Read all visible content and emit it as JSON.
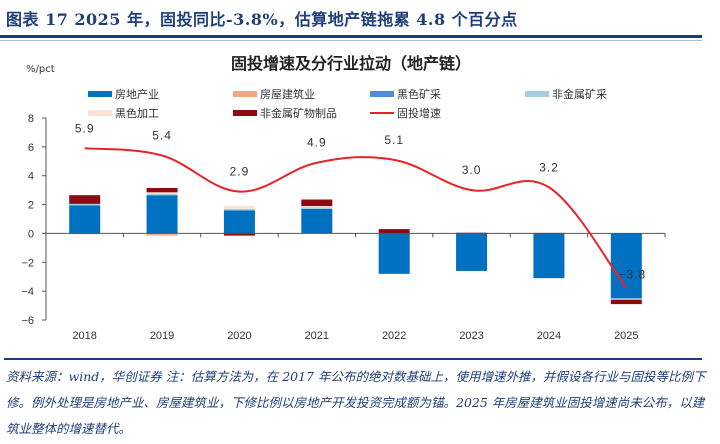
{
  "figure": {
    "title": "图表 17   2025 年，固投同比-3.8%，估算地产链拖累 4.8 个百分点",
    "source_note": "资料来源：wind，华创证券 注：估算方法为，在 2017 年公布的绝对数基础上，使用增速外推，并假设各行业与固投等比例下修。例外处理是房地产业、房屋建筑业，下修比例以房地产开发投资完成额为锚。2025 年房屋建筑业固投增速尚未公布，以建筑业整体的增速替代。"
  },
  "chart_data": {
    "type": "bar",
    "subtype": "stacked-bar-with-line",
    "title": "固投增速及分行业拉动（地产链）",
    "ylabel": "%/pct",
    "xlabel": "",
    "ylim": [
      -6,
      8
    ],
    "yticks": [
      8,
      6,
      4,
      2,
      0,
      -2,
      -4,
      -6
    ],
    "ytick_labels": [
      "8",
      "6",
      "4",
      "2",
      "0",
      "−2",
      "−4",
      "−6"
    ],
    "grid": false,
    "legend_position": "top",
    "categories": [
      "2018",
      "2019",
      "2020",
      "2021",
      "2022",
      "2023",
      "2024",
      "2025"
    ],
    "series": [
      {
        "name": "房地产业",
        "kind": "bar",
        "color": "#0070c0",
        "values": [
          1.95,
          2.65,
          1.6,
          1.7,
          -2.8,
          -2.6,
          -3.1,
          -4.5
        ]
      },
      {
        "name": "房屋建筑业",
        "kind": "bar",
        "color": "#f4a582",
        "values": [
          -0.05,
          -0.15,
          0.0,
          0.0,
          0.0,
          0.0,
          0.05,
          0.0
        ]
      },
      {
        "name": "黑色矿采",
        "kind": "bar",
        "color": "#4a90d9",
        "values": [
          0.0,
          0.0,
          0.0,
          0.0,
          0.0,
          0.0,
          0.0,
          0.0
        ]
      },
      {
        "name": "非金属矿采",
        "kind": "bar",
        "color": "#a6cee3",
        "values": [
          0.1,
          0.1,
          0.1,
          0.1,
          0.0,
          0.0,
          0.0,
          -0.1
        ]
      },
      {
        "name": "黑色加工",
        "kind": "bar",
        "color": "#fde0d6",
        "values": [
          0.0,
          0.1,
          0.2,
          0.1,
          0.0,
          0.0,
          0.0,
          0.0
        ]
      },
      {
        "name": "非金属矿物制品",
        "kind": "bar",
        "color": "#8b0a14",
        "values": [
          0.6,
          0.3,
          -0.15,
          0.45,
          0.3,
          0.05,
          0.0,
          -0.3
        ]
      },
      {
        "name": "固投增速",
        "kind": "line",
        "color": "#e8232a",
        "values": [
          5.9,
          5.4,
          2.9,
          4.9,
          5.1,
          3.0,
          3.2,
          -3.8
        ],
        "labels": [
          "5.9",
          "5.4",
          "2.9",
          "4.9",
          "5.1",
          "3.0",
          "3.2",
          "−3.8"
        ]
      }
    ]
  },
  "legend": [
    {
      "label": "房地产业",
      "color": "#0070c0",
      "kind": "bar"
    },
    {
      "label": "房屋建筑业",
      "color": "#f4a582",
      "kind": "bar"
    },
    {
      "label": "黑色矿采",
      "color": "#4a90d9",
      "kind": "bar"
    },
    {
      "label": "非金属矿采",
      "color": "#a6cee3",
      "kind": "bar"
    },
    {
      "label": "黑色加工",
      "color": "#fde0d6",
      "kind": "bar"
    },
    {
      "label": "非金属矿物制品",
      "color": "#8b0a14",
      "kind": "bar"
    },
    {
      "label": "固投增速",
      "color": "#e8232a",
      "kind": "line"
    }
  ]
}
